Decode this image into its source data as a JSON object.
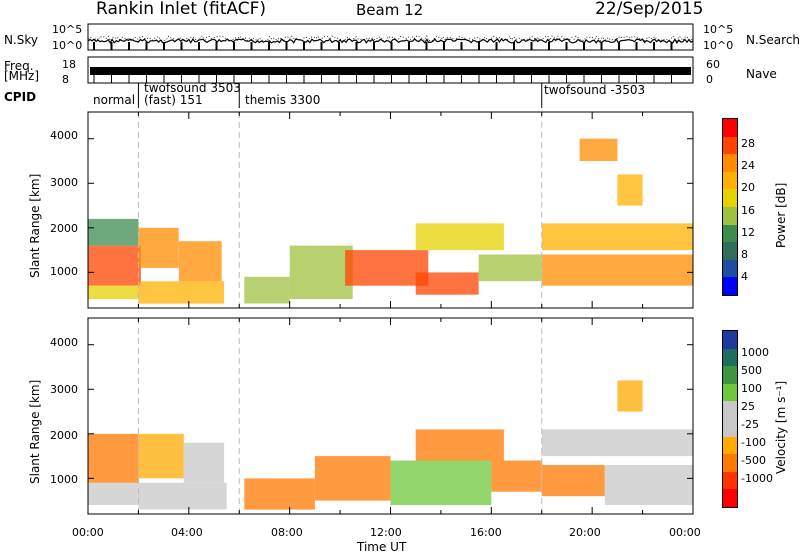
{
  "header": {
    "station": "Rankin Inlet (fitACF)",
    "beam": "Beam 12",
    "date": "22/Sep/2015"
  },
  "left_labels": {
    "nsky": "N.Sky",
    "nsky_ticks": [
      "10^5",
      "10^0"
    ],
    "freq": "Freq.",
    "freq_unit": "[MHz]",
    "freq_ticks": [
      "18",
      "8"
    ],
    "cpid": "CPID"
  },
  "right_labels": {
    "nsearch": "N.Search",
    "nsearch_ticks": [
      "10^5",
      "10^0"
    ],
    "nave": "Nave",
    "nave_ticks": [
      "60",
      "0"
    ]
  },
  "cpid_segments": [
    {
      "label": "normal",
      "start_hour": 0
    },
    {
      "label": "twofsound  3503",
      "label2": "(fast) 151",
      "start_hour": 2
    },
    {
      "label": "themis 3300",
      "start_hour": 6
    },
    {
      "label": "twofsound  -3503",
      "start_hour": 18
    }
  ],
  "power_colorbar": {
    "label": "Power [dB]",
    "ticks": [
      "28",
      "24",
      "20",
      "16",
      "12",
      "8",
      "4"
    ],
    "colors": [
      "#ff0000",
      "#ff4400",
      "#ff8c00",
      "#ffb000",
      "#e6d200",
      "#a0c040",
      "#3c8c50",
      "#2e6e5a",
      "#1e4ea0",
      "#0000ff"
    ]
  },
  "velocity_colorbar": {
    "label": "Velocity [m s⁻¹]",
    "ticks": [
      "1000",
      "500",
      "100",
      "25",
      "-25",
      "-100",
      "-500",
      "-1000"
    ],
    "colors": [
      "#1c3aa0",
      "#1e6e60",
      "#3c9640",
      "#6ec83c",
      "#c8c8c8",
      "#c8c8c8",
      "#ffaa00",
      "#ff7800",
      "#ff3200",
      "#ff0000"
    ]
  },
  "axis": {
    "ylabel": "Slant Range [km]",
    "yticks": [
      "4000",
      "3000",
      "2000",
      "1000"
    ],
    "xticks": [
      "00:00",
      "04:00",
      "08:00",
      "12:00",
      "16:00",
      "20:00",
      "00:00"
    ],
    "xlabel": "Time UT"
  },
  "chart_data": [
    {
      "type": "heatmap",
      "title": "",
      "quantity": "Power [dB]",
      "xlabel": "",
      "ylabel": "Slant Range [km]",
      "xlim_hours": [
        0,
        24
      ],
      "ylim_km": [
        200,
        4600
      ],
      "color_range": [
        0,
        30
      ],
      "regions": [
        {
          "t0": 0.0,
          "t1": 2.1,
          "r0": 700,
          "r1": 1600,
          "value": 26
        },
        {
          "t0": 0.0,
          "t1": 2.0,
          "r0": 1600,
          "r1": 2200,
          "value": 12
        },
        {
          "t0": 0.0,
          "t1": 2.0,
          "r0": 400,
          "r1": 700,
          "value": 18
        },
        {
          "t0": 2.0,
          "t1": 3.6,
          "r0": 1100,
          "r1": 2000,
          "value": 22
        },
        {
          "t0": 2.0,
          "t1": 5.4,
          "r0": 300,
          "r1": 800,
          "value": 20
        },
        {
          "t0": 3.6,
          "t1": 5.3,
          "r0": 800,
          "r1": 1700,
          "value": 24
        },
        {
          "t0": 6.2,
          "t1": 8.0,
          "r0": 300,
          "r1": 900,
          "value": 14
        },
        {
          "t0": 8.0,
          "t1": 10.5,
          "r0": 400,
          "r1": 1600,
          "value": 14
        },
        {
          "t0": 10.2,
          "t1": 13.5,
          "r0": 700,
          "r1": 1500,
          "value": 26
        },
        {
          "t0": 13.0,
          "t1": 15.5,
          "r0": 500,
          "r1": 1000,
          "value": 26
        },
        {
          "t0": 13.0,
          "t1": 16.5,
          "r0": 1500,
          "r1": 2100,
          "value": 16
        },
        {
          "t0": 15.5,
          "t1": 18.0,
          "r0": 800,
          "r1": 1400,
          "value": 14
        },
        {
          "t0": 18.0,
          "t1": 24.0,
          "r0": 700,
          "r1": 1400,
          "value": 24
        },
        {
          "t0": 18.0,
          "t1": 24.0,
          "r0": 1500,
          "r1": 2100,
          "value": 20
        },
        {
          "t0": 19.5,
          "t1": 21.0,
          "r0": 3500,
          "r1": 4000,
          "value": 22
        },
        {
          "t0": 21.0,
          "t1": 22.0,
          "r0": 2500,
          "r1": 3200,
          "value": 20
        }
      ]
    },
    {
      "type": "heatmap",
      "title": "",
      "quantity": "Velocity [m s⁻¹]",
      "xlabel": "Time UT",
      "ylabel": "Slant Range [km]",
      "xlim_hours": [
        0,
        24
      ],
      "ylim_km": [
        200,
        4600
      ],
      "color_range": [
        -1000,
        1000
      ],
      "regions": [
        {
          "t0": 0.0,
          "t1": 2.0,
          "r0": 400,
          "r1": 900,
          "value": 100
        },
        {
          "t0": 0.0,
          "t1": 2.0,
          "r0": 900,
          "r1": 2000,
          "value": -500
        },
        {
          "t0": 2.0,
          "t1": 3.8,
          "r0": 1000,
          "r1": 2000,
          "value": -300
        },
        {
          "t0": 2.0,
          "t1": 5.5,
          "r0": 300,
          "r1": 900,
          "value": 60
        },
        {
          "t0": 3.8,
          "t1": 5.4,
          "r0": 900,
          "r1": 1800,
          "value": -100
        },
        {
          "t0": 6.2,
          "t1": 9.0,
          "r0": 300,
          "r1": 1000,
          "value": -500
        },
        {
          "t0": 9.0,
          "t1": 12.0,
          "r0": 500,
          "r1": 1500,
          "value": -400
        },
        {
          "t0": 12.0,
          "t1": 16.0,
          "r0": 400,
          "r1": 1400,
          "value": 300
        },
        {
          "t0": 13.0,
          "t1": 16.5,
          "r0": 1400,
          "r1": 2100,
          "value": -500
        },
        {
          "t0": 16.0,
          "t1": 18.0,
          "r0": 700,
          "r1": 1400,
          "value": -400
        },
        {
          "t0": 18.0,
          "t1": 24.0,
          "r0": 1500,
          "r1": 2100,
          "value": 0
        },
        {
          "t0": 18.0,
          "t1": 20.5,
          "r0": 600,
          "r1": 1300,
          "value": -500
        },
        {
          "t0": 20.5,
          "t1": 24.0,
          "r0": 400,
          "r1": 1300,
          "value": 200
        },
        {
          "t0": 21.0,
          "t1": 22.0,
          "r0": 2500,
          "r1": 3200,
          "value": -300
        }
      ]
    }
  ]
}
